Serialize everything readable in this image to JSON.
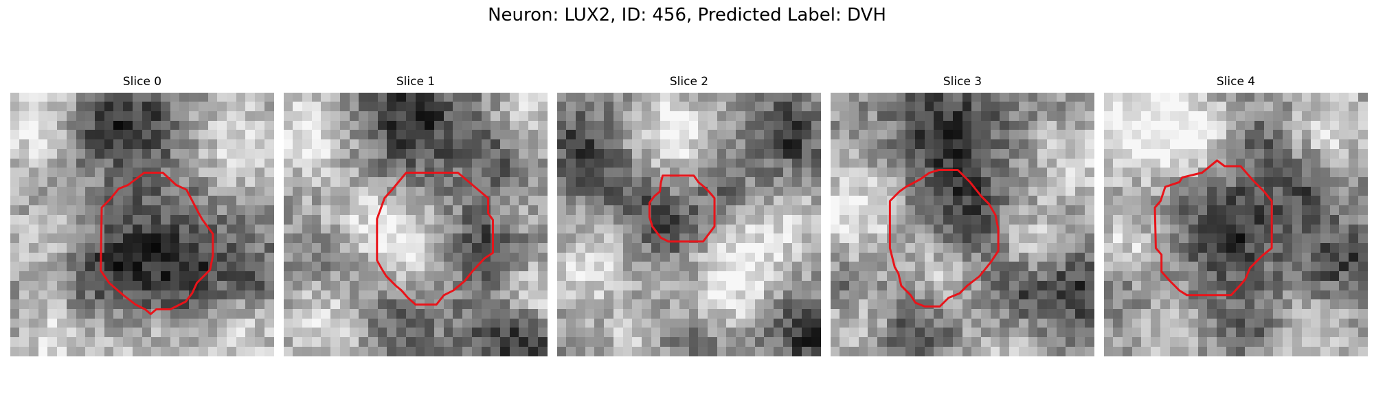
{
  "figure": {
    "title": "Neuron: LUX2, ID: 456, Predicted Label: DVH"
  },
  "colors": {
    "contour": "#e8141a",
    "background": "#ffffff",
    "colormap": "gray"
  },
  "image_grid": {
    "rows": 28,
    "cols": 28
  },
  "slices": [
    {
      "title": "Slice 0",
      "contour": [
        [
          14.2,
          8.5
        ],
        [
          16.2,
          8.5
        ],
        [
          17.6,
          9.8
        ],
        [
          18.7,
          10.3
        ],
        [
          20.0,
          12.8
        ],
        [
          20.4,
          13.5
        ],
        [
          21.5,
          15.0
        ],
        [
          21.5,
          17.3
        ],
        [
          21.2,
          18.8
        ],
        [
          19.8,
          20.2
        ],
        [
          19.3,
          21.3
        ],
        [
          18.6,
          22.2
        ],
        [
          17.0,
          23.0
        ],
        [
          15.5,
          23.0
        ],
        [
          14.9,
          23.5
        ],
        [
          14.3,
          23.0
        ],
        [
          13.3,
          22.5
        ],
        [
          12.0,
          21.5
        ],
        [
          10.5,
          20.2
        ],
        [
          9.6,
          18.9
        ],
        [
          9.7,
          12.2
        ],
        [
          10.6,
          11.3
        ],
        [
          11.5,
          10.2
        ],
        [
          12.5,
          9.8
        ],
        [
          13.3,
          9.2
        ]
      ],
      "bright": [
        [
          3,
          3,
          3.5,
          0.35
        ],
        [
          24,
          5,
          3.5,
          0.3
        ],
        [
          25,
          24,
          4,
          0.25
        ],
        [
          4,
          26,
          3,
          0.3
        ],
        [
          14,
          27,
          4,
          0.2
        ],
        [
          3,
          15,
          3,
          0.2
        ]
      ],
      "dark": [
        [
          15,
          16,
          5,
          0.3
        ],
        [
          9,
          3,
          3,
          0.35
        ],
        [
          14,
          3,
          3,
          0.25
        ],
        [
          18,
          20,
          3,
          0.2
        ],
        [
          10,
          19,
          3,
          0.25
        ],
        [
          27,
          20,
          2.5,
          0.25
        ],
        [
          23,
          18,
          3,
          0.15
        ]
      ]
    },
    {
      "title": "Slice 1",
      "contour": [
        [
          13.0,
          8.5
        ],
        [
          18.5,
          8.5
        ],
        [
          21.7,
          11.2
        ],
        [
          21.7,
          12.8
        ],
        [
          22.2,
          13.5
        ],
        [
          22.2,
          17.0
        ],
        [
          21.3,
          17.6
        ],
        [
          20.0,
          19.0
        ],
        [
          19.2,
          20.0
        ],
        [
          18.0,
          21.0
        ],
        [
          17.0,
          21.5
        ],
        [
          16.2,
          22.5
        ],
        [
          14.0,
          22.5
        ],
        [
          13.2,
          21.8
        ],
        [
          12.5,
          21.0
        ],
        [
          11.9,
          20.5
        ],
        [
          10.9,
          19.5
        ],
        [
          10.4,
          18.7
        ],
        [
          9.9,
          17.8
        ],
        [
          9.9,
          13.4
        ],
        [
          10.3,
          12.3
        ],
        [
          10.7,
          11.2
        ],
        [
          11.5,
          10.3
        ]
      ],
      "bright": [
        [
          13,
          16,
          3,
          0.35
        ],
        [
          2,
          4,
          3.5,
          0.35
        ],
        [
          8,
          14,
          3,
          0.3
        ],
        [
          26,
          21,
          3,
          0.3
        ],
        [
          4,
          24,
          3,
          0.3
        ],
        [
          24,
          12,
          2,
          0.2
        ],
        [
          25,
          2,
          3,
          0.25
        ]
      ],
      "dark": [
        [
          13,
          2,
          4,
          0.4
        ],
        [
          21,
          16,
          3,
          0.35
        ],
        [
          26,
          26,
          2.5,
          0.35
        ],
        [
          22,
          6,
          3,
          0.25
        ],
        [
          6,
          17,
          2.5,
          0.2
        ],
        [
          12,
          24,
          3,
          0.25
        ],
        [
          22,
          25,
          2.5,
          0.25
        ]
      ]
    },
    {
      "title": "Slice 2",
      "contour": [
        [
          11.2,
          8.8
        ],
        [
          14.5,
          8.8
        ],
        [
          15.0,
          9.5
        ],
        [
          15.6,
          10.0
        ],
        [
          16.1,
          10.5
        ],
        [
          16.7,
          11.2
        ],
        [
          16.7,
          14.2
        ],
        [
          16.1,
          15.0
        ],
        [
          15.5,
          15.8
        ],
        [
          11.8,
          15.8
        ],
        [
          11.0,
          15.4
        ],
        [
          10.1,
          14.2
        ],
        [
          9.8,
          13.2
        ],
        [
          9.8,
          11.7
        ],
        [
          10.3,
          11.0
        ],
        [
          10.9,
          10.5
        ],
        [
          11.0,
          9.6
        ]
      ],
      "bright": [
        [
          12,
          4,
          3.5,
          0.35
        ],
        [
          3,
          18,
          3,
          0.3
        ],
        [
          19,
          18,
          3,
          0.3
        ],
        [
          24,
          14,
          3,
          0.25
        ],
        [
          8,
          26,
          3,
          0.2
        ],
        [
          17,
          22,
          2.5,
          0.2
        ]
      ],
      "dark": [
        [
          11,
          13,
          2.5,
          0.35
        ],
        [
          2,
          5,
          3,
          0.3
        ],
        [
          24,
          4,
          3,
          0.35
        ],
        [
          26,
          25,
          2.5,
          0.4
        ],
        [
          17,
          9,
          2,
          0.2
        ],
        [
          6,
          9,
          2.5,
          0.2
        ],
        [
          13,
          27,
          2.5,
          0.2
        ]
      ]
    },
    {
      "title": "Slice 3",
      "contour": [
        [
          11.5,
          8.2
        ],
        [
          13.5,
          8.2
        ],
        [
          14.8,
          9.5
        ],
        [
          16.0,
          11.0
        ],
        [
          16.8,
          11.8
        ],
        [
          17.5,
          13.0
        ],
        [
          17.8,
          14.5
        ],
        [
          17.8,
          16.8
        ],
        [
          17.0,
          18.0
        ],
        [
          15.8,
          19.5
        ],
        [
          14.5,
          20.5
        ],
        [
          13.7,
          21.3
        ],
        [
          12.5,
          21.8
        ],
        [
          11.6,
          22.7
        ],
        [
          10.0,
          22.7
        ],
        [
          9.0,
          22.3
        ],
        [
          8.5,
          21.5
        ],
        [
          7.5,
          20.5
        ],
        [
          7.2,
          19.2
        ],
        [
          6.8,
          18.5
        ],
        [
          6.3,
          16.5
        ],
        [
          6.3,
          11.5
        ],
        [
          7.3,
          10.5
        ],
        [
          8.0,
          10.0
        ],
        [
          9.5,
          9.2
        ],
        [
          10.5,
          8.5
        ]
      ],
      "bright": [
        [
          2,
          12,
          3.5,
          0.35
        ],
        [
          3,
          24,
          3,
          0.25
        ],
        [
          11,
          19,
          2.5,
          0.2
        ],
        [
          25,
          7,
          3,
          0.25
        ],
        [
          18,
          27,
          3,
          0.2
        ],
        [
          21,
          15,
          2.5,
          0.2
        ]
      ],
      "dark": [
        [
          12,
          4,
          4,
          0.4
        ],
        [
          14,
          12,
          3,
          0.3
        ],
        [
          26,
          21,
          3,
          0.35
        ],
        [
          8,
          25,
          3,
          0.3
        ],
        [
          19,
          21,
          2.5,
          0.25
        ],
        [
          1,
          20,
          2,
          0.2
        ]
      ]
    },
    {
      "title": "Slice 4",
      "contour": [
        [
          12.0,
          7.2
        ],
        [
          12.8,
          7.8
        ],
        [
          14.5,
          7.8
        ],
        [
          15.8,
          9.3
        ],
        [
          17.0,
          10.5
        ],
        [
          17.8,
          11.5
        ],
        [
          17.8,
          16.5
        ],
        [
          16.8,
          17.3
        ],
        [
          15.5,
          18.6
        ],
        [
          15.0,
          19.8
        ],
        [
          14.5,
          20.4
        ],
        [
          13.5,
          21.5
        ],
        [
          8.8,
          21.5
        ],
        [
          8.0,
          21.0
        ],
        [
          7.0,
          20.0
        ],
        [
          6.1,
          19.0
        ],
        [
          6.1,
          17.2
        ],
        [
          5.5,
          16.5
        ],
        [
          5.4,
          12.2
        ],
        [
          6.0,
          11.5
        ],
        [
          6.5,
          10.0
        ],
        [
          8.0,
          9.5
        ],
        [
          8.3,
          9.0
        ],
        [
          10.4,
          8.5
        ]
      ],
      "bright": [
        [
          3,
          3,
          4,
          0.4
        ],
        [
          9,
          4,
          3,
          0.3
        ],
        [
          24,
          3,
          3,
          0.3
        ],
        [
          2,
          16,
          3,
          0.25
        ],
        [
          22,
          25,
          3,
          0.25
        ],
        [
          6,
          26,
          2.5,
          0.2
        ],
        [
          26,
          20,
          1.5,
          0.15
        ]
      ],
      "dark": [
        [
          13,
          14,
          4,
          0.4
        ],
        [
          25,
          18,
          3,
          0.35
        ],
        [
          21,
          10,
          2.5,
          0.25
        ],
        [
          16,
          5,
          2,
          0.2
        ],
        [
          15,
          24,
          2.5,
          0.2
        ],
        [
          1,
          21,
          2,
          0.15
        ]
      ]
    }
  ]
}
